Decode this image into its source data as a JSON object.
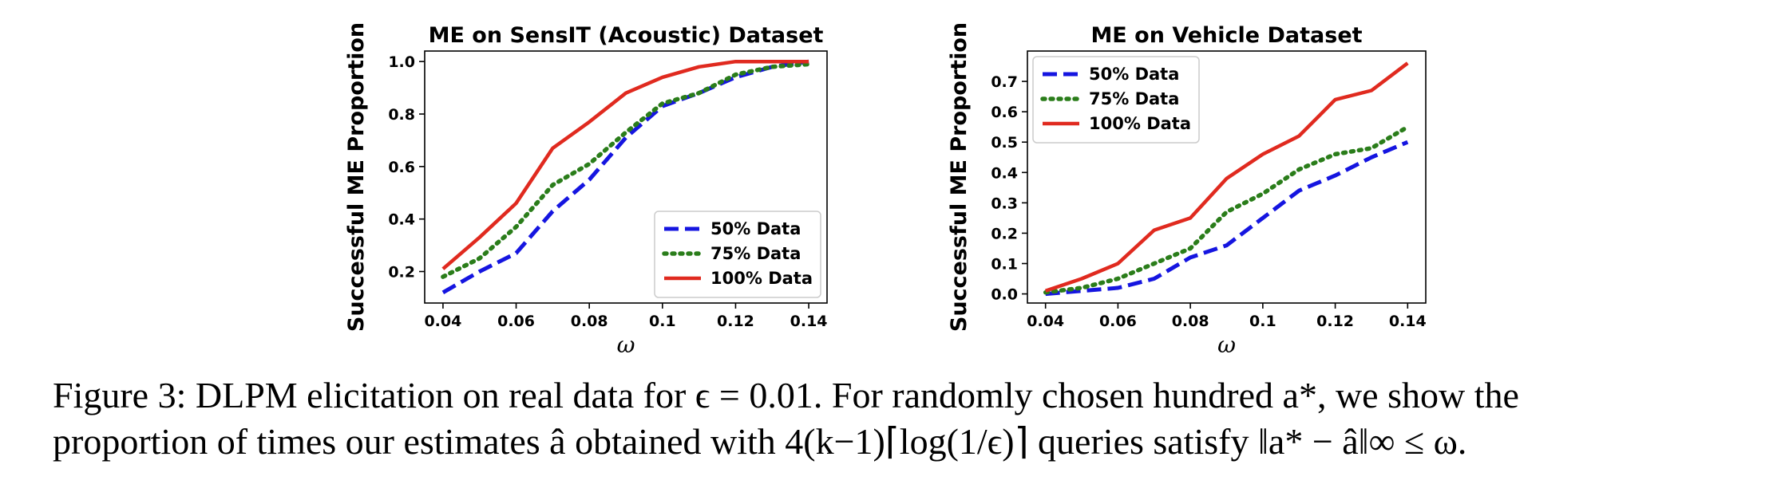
{
  "colors": {
    "s50": "#1515e0",
    "s75": "#2a7d1a",
    "s100": "#e02a1f"
  },
  "chart_data": [
    {
      "type": "line",
      "title": "ME on SensIT (Acoustic) Dataset",
      "xlabel": "ω",
      "ylabel": "Successful ME Proportion",
      "x": [
        0.04,
        0.05,
        0.06,
        0.07,
        0.08,
        0.09,
        0.1,
        0.11,
        0.12,
        0.13,
        0.14
      ],
      "xticks": [
        "0.04",
        "0.06",
        "0.08",
        "0.1",
        "0.12",
        "0.14"
      ],
      "xtick_values": [
        0.04,
        0.06,
        0.08,
        0.1,
        0.12,
        0.14
      ],
      "yticks": [
        "0.2",
        "0.4",
        "0.6",
        "0.8",
        "1.0"
      ],
      "ytick_values": [
        0.2,
        0.4,
        0.6,
        0.8,
        1.0
      ],
      "xlim": [
        0.035,
        0.145
      ],
      "ylim": [
        0.08,
        1.04
      ],
      "grid": false,
      "legend_position": "lower-right",
      "series": [
        {
          "name": "50% Data",
          "style": "dashed",
          "color": "#1515e0",
          "values": [
            0.12,
            0.2,
            0.27,
            0.43,
            0.55,
            0.71,
            0.83,
            0.88,
            0.94,
            0.98,
            1.0
          ]
        },
        {
          "name": "75% Data",
          "style": "dotted",
          "color": "#2a7d1a",
          "values": [
            0.18,
            0.25,
            0.37,
            0.53,
            0.61,
            0.73,
            0.84,
            0.88,
            0.95,
            0.98,
            0.99
          ]
        },
        {
          "name": "100% Data",
          "style": "solid",
          "color": "#e02a1f",
          "values": [
            0.21,
            0.33,
            0.46,
            0.67,
            0.77,
            0.88,
            0.94,
            0.98,
            1.0,
            1.0,
            1.0
          ]
        }
      ]
    },
    {
      "type": "line",
      "title": "ME on Vehicle Dataset",
      "xlabel": "ω",
      "ylabel": "Successful ME Proportion",
      "x": [
        0.04,
        0.05,
        0.06,
        0.07,
        0.08,
        0.09,
        0.1,
        0.11,
        0.12,
        0.13,
        0.14
      ],
      "xticks": [
        "0.04",
        "0.06",
        "0.08",
        "0.1",
        "0.12",
        "0.14"
      ],
      "xtick_values": [
        0.04,
        0.06,
        0.08,
        0.1,
        0.12,
        0.14
      ],
      "yticks": [
        "0.0",
        "0.1",
        "0.2",
        "0.3",
        "0.4",
        "0.5",
        "0.6",
        "0.7"
      ],
      "ytick_values": [
        0.0,
        0.1,
        0.2,
        0.3,
        0.4,
        0.5,
        0.6,
        0.7
      ],
      "xlim": [
        0.035,
        0.145
      ],
      "ylim": [
        -0.03,
        0.8
      ],
      "grid": false,
      "legend_position": "upper-left",
      "series": [
        {
          "name": "50% Data",
          "style": "dashed",
          "color": "#1515e0",
          "values": [
            0.0,
            0.01,
            0.02,
            0.05,
            0.12,
            0.16,
            0.25,
            0.34,
            0.39,
            0.45,
            0.5
          ]
        },
        {
          "name": "75% Data",
          "style": "dotted",
          "color": "#2a7d1a",
          "values": [
            0.005,
            0.02,
            0.05,
            0.1,
            0.15,
            0.27,
            0.33,
            0.41,
            0.46,
            0.48,
            0.55
          ]
        },
        {
          "name": "100% Data",
          "style": "solid",
          "color": "#e02a1f",
          "values": [
            0.01,
            0.05,
            0.1,
            0.21,
            0.25,
            0.38,
            0.46,
            0.52,
            0.64,
            0.67,
            0.76
          ]
        }
      ]
    }
  ],
  "caption": {
    "line1": "Figure 3: DLPM elicitation on real data for ϵ = 0.01. For randomly chosen hundred a*, we show the",
    "line2": "proportion of times our estimates â obtained with 4(k−1)⌈log(1/ϵ)⌉ queries satisfy ‖a* − â‖∞ ≤ ω."
  }
}
